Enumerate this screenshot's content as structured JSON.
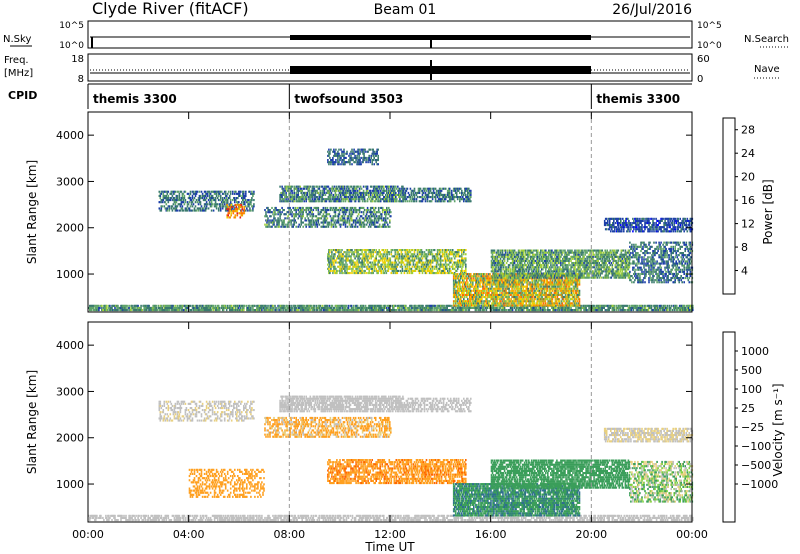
{
  "header": {
    "station": "Clyde River (fitACF)",
    "beam": "Beam 01",
    "date": "26/Jul/2016"
  },
  "nsky_panel": {
    "left_label": "N.Sky",
    "left_ticks": [
      "10^5",
      "10^0"
    ],
    "right_label": "N.Search",
    "right_ticks": [
      "10^5",
      "10^0"
    ]
  },
  "freq_panel": {
    "left_label_1": "Freq.",
    "left_label_2": "[MHz]",
    "left_ticks": [
      "18",
      "8"
    ],
    "right_label": "Nave",
    "right_ticks": [
      "60",
      "0"
    ]
  },
  "cpid_panel": {
    "label": "CPID",
    "segments": [
      {
        "name": "themis 3300",
        "start_h": 0,
        "end_h": 8
      },
      {
        "name": "twofsound 3503",
        "start_h": 8,
        "end_h": 20
      },
      {
        "name": "themis 3300",
        "start_h": 20,
        "end_h": 24
      }
    ]
  },
  "colors": {
    "power": [
      "#0000ff",
      "#1c3fa8",
      "#3a7a6e",
      "#5fa36a",
      "#9fcf3a",
      "#f0d000",
      "#f2a000",
      "#ff7000",
      "#e02020"
    ],
    "velocity": [
      "#e00000",
      "#ff6600",
      "#ffa020",
      "#e8d080",
      "#c0c0c0",
      "#80d040",
      "#3b9e5a",
      "#2e6f8f",
      "#1c3fa8",
      "#0000ff"
    ]
  },
  "chart_data": [
    {
      "type": "heatmap",
      "panel": "power",
      "xlabel": "Time UT",
      "ylabel": "Slant Range [km]",
      "xlim": [
        0,
        24
      ],
      "ylim": [
        180,
        4500
      ],
      "x_ticks": [
        "00:00",
        "04:00",
        "08:00",
        "12:00",
        "16:00",
        "20:00",
        "00:00"
      ],
      "x_tick_values": [
        0,
        4,
        8,
        12,
        16,
        20,
        24
      ],
      "y_ticks": [
        "1000",
        "2000",
        "3000",
        "4000"
      ],
      "y_tick_values": [
        1000,
        2000,
        3000,
        4000
      ],
      "colorbar": {
        "label": "Power [dB]",
        "ticks": [
          "4",
          "8",
          "12",
          "16",
          "20",
          "24",
          "28"
        ],
        "range": [
          0,
          30
        ]
      },
      "regions": [
        {
          "t0": 0,
          "t1": 24,
          "r0": 200,
          "r1": 330,
          "v0": 6,
          "v1": 14,
          "density": 0.8
        },
        {
          "t0": 2.8,
          "t1": 6.6,
          "r0": 2350,
          "r1": 2800,
          "v0": 4,
          "v1": 12,
          "density": 0.5
        },
        {
          "t0": 5.5,
          "t1": 6.2,
          "r0": 2200,
          "r1": 2500,
          "v0": 18,
          "v1": 28,
          "density": 0.5
        },
        {
          "t0": 7.6,
          "t1": 12.5,
          "r0": 2550,
          "r1": 2900,
          "v0": 4,
          "v1": 14,
          "density": 0.7
        },
        {
          "t0": 7.0,
          "t1": 12.0,
          "r0": 2000,
          "r1": 2450,
          "v0": 4,
          "v1": 14,
          "density": 0.5
        },
        {
          "t0": 9.5,
          "t1": 11.5,
          "r0": 3350,
          "r1": 3700,
          "v0": 4,
          "v1": 10,
          "density": 0.5
        },
        {
          "t0": 9.5,
          "t1": 15.0,
          "r0": 1000,
          "r1": 1500,
          "v0": 8,
          "v1": 20,
          "density": 0.6
        },
        {
          "t0": 12.5,
          "t1": 15.2,
          "r0": 2550,
          "r1": 2850,
          "v0": 4,
          "v1": 12,
          "density": 0.6
        },
        {
          "t0": 14.5,
          "t1": 19.5,
          "r0": 300,
          "r1": 1000,
          "v0": 8,
          "v1": 26,
          "density": 0.8
        },
        {
          "t0": 16.0,
          "t1": 21.5,
          "r0": 900,
          "r1": 1500,
          "v0": 6,
          "v1": 16,
          "density": 0.7
        },
        {
          "t0": 20.5,
          "t1": 24.0,
          "r0": 1900,
          "r1": 2200,
          "v0": 3,
          "v1": 8,
          "density": 0.6
        },
        {
          "t0": 21.5,
          "t1": 24.0,
          "r0": 800,
          "r1": 1700,
          "v0": 4,
          "v1": 12,
          "density": 0.5
        }
      ]
    },
    {
      "type": "heatmap",
      "panel": "velocity",
      "xlabel": "Time UT",
      "ylabel": "Slant Range [km]",
      "xlim": [
        0,
        24
      ],
      "ylim": [
        180,
        4500
      ],
      "x_ticks": [
        "00:00",
        "04:00",
        "08:00",
        "12:00",
        "16:00",
        "20:00",
        "00:00"
      ],
      "x_tick_values": [
        0,
        4,
        8,
        12,
        16,
        20,
        24
      ],
      "y_ticks": [
        "1000",
        "2000",
        "3000",
        "4000"
      ],
      "y_tick_values": [
        1000,
        2000,
        3000,
        4000
      ],
      "colorbar": {
        "label": "Velocity [m s⁻¹]",
        "ticks": [
          "1000",
          "500",
          "100",
          "25",
          "−25",
          "−100",
          "−500",
          "−1000"
        ]
      },
      "regions": [
        {
          "t0": 0,
          "t1": 24,
          "r0": 200,
          "r1": 330,
          "v0": -20,
          "v1": 20,
          "density": 0.6
        },
        {
          "t0": 2.8,
          "t1": 6.6,
          "r0": 2350,
          "r1": 2800,
          "v0": -40,
          "v1": 20,
          "density": 0.4
        },
        {
          "t0": 7.6,
          "t1": 12.5,
          "r0": 2550,
          "r1": 2900,
          "v0": -20,
          "v1": 20,
          "density": 0.7
        },
        {
          "t0": 7.0,
          "t1": 12.0,
          "r0": 2000,
          "r1": 2450,
          "v0": -300,
          "v1": 20,
          "density": 0.5
        },
        {
          "t0": 4.0,
          "t1": 7.0,
          "r0": 700,
          "r1": 1300,
          "v0": -400,
          "v1": -150,
          "density": 0.4
        },
        {
          "t0": 9.5,
          "t1": 15.0,
          "r0": 1000,
          "r1": 1500,
          "v0": -600,
          "v1": -150,
          "density": 0.6
        },
        {
          "t0": 12.5,
          "t1": 15.2,
          "r0": 2550,
          "r1": 2850,
          "v0": -20,
          "v1": 20,
          "density": 0.5
        },
        {
          "t0": 14.5,
          "t1": 19.5,
          "r0": 300,
          "r1": 1000,
          "v0": 100,
          "v1": 700,
          "density": 0.8
        },
        {
          "t0": 16.0,
          "t1": 21.5,
          "r0": 900,
          "r1": 1500,
          "v0": 100,
          "v1": 500,
          "density": 0.7
        },
        {
          "t0": 20.5,
          "t1": 24.0,
          "r0": 1900,
          "r1": 2200,
          "v0": -60,
          "v1": 20,
          "density": 0.6
        },
        {
          "t0": 21.5,
          "t1": 24.0,
          "r0": 600,
          "r1": 1500,
          "v0": -100,
          "v1": 200,
          "density": 0.5
        }
      ]
    }
  ]
}
